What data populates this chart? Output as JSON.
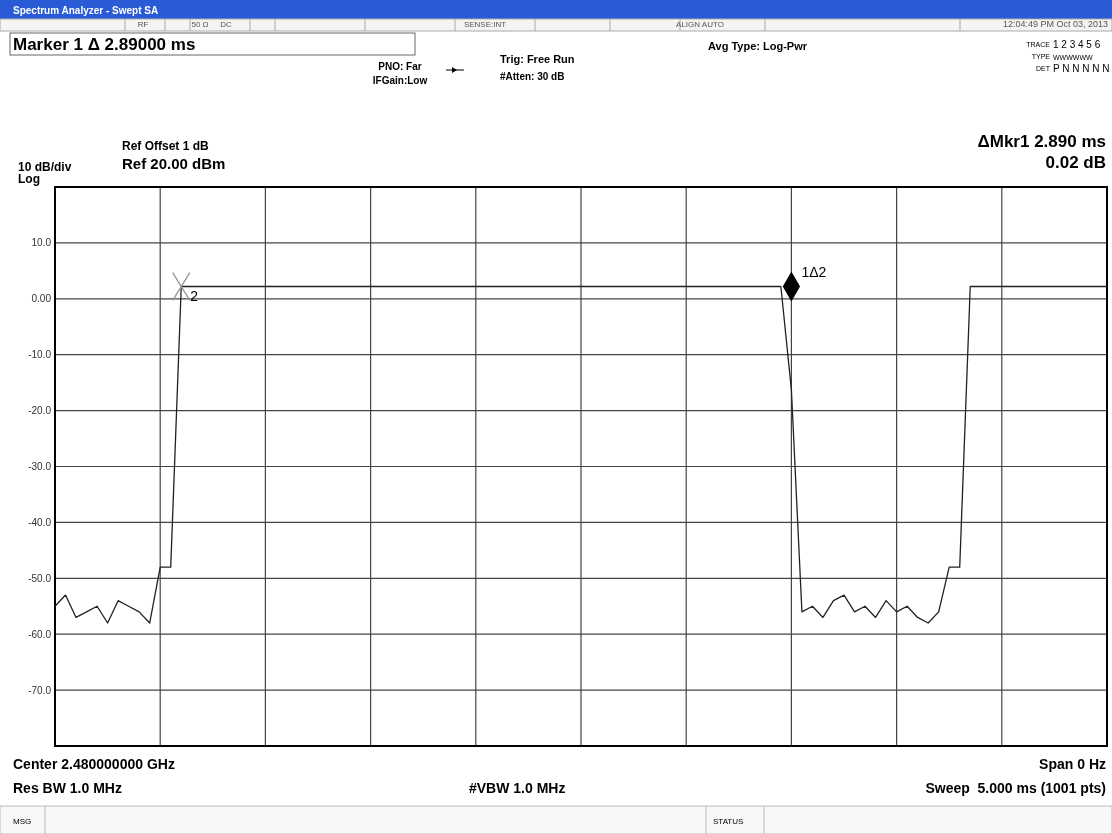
{
  "chart_data": {
    "type": "line",
    "title": "Spectrum Analyzer - Swept SA",
    "categories": [
      null,
      null,
      null,
      null,
      null,
      null,
      null,
      null,
      null,
      null,
      null,
      null,
      null,
      null,
      null,
      null,
      null,
      null,
      null,
      null,
      null,
      null,
      null,
      null,
      null,
      null,
      null,
      null,
      null,
      null,
      null,
      null,
      null,
      null,
      null,
      null,
      null,
      null,
      null,
      null,
      null,
      null,
      null,
      null,
      null,
      null,
      null,
      null,
      null,
      null,
      null,
      null,
      null,
      null,
      null,
      null,
      null,
      null,
      null,
      null,
      null,
      null,
      null,
      null,
      null,
      null,
      null,
      null,
      null,
      null,
      null,
      null,
      null,
      null,
      null,
      null,
      null,
      null,
      null,
      null,
      null,
      null,
      null,
      null,
      null,
      null,
      null,
      null,
      null,
      null,
      null,
      null,
      null,
      null,
      null,
      null,
      null,
      null,
      null,
      null,
      null
    ],
    "series": [
      {
        "color": "#222222",
        "marker": "none",
        "values": [
          -55,
          -53,
          -57,
          -56,
          -55,
          -58,
          -54,
          -55,
          -56,
          -58,
          -48,
          -48,
          2.2,
          2.2,
          2.2,
          2.2,
          2.2,
          2.2,
          2.2,
          2.2,
          2.2,
          2.2,
          2.2,
          2.2,
          2.2,
          2.2,
          2.2,
          2.2,
          2.2,
          2.2,
          2.2,
          2.2,
          2.2,
          2.2,
          2.2,
          2.2,
          2.2,
          2.2,
          2.2,
          2.2,
          2.2,
          2.2,
          2.2,
          2.2,
          2.2,
          2.2,
          2.2,
          2.2,
          2.2,
          2.2,
          2.2,
          2.2,
          2.2,
          2.2,
          2.2,
          2.2,
          2.2,
          2.2,
          2.2,
          2.2,
          2.2,
          2.2,
          2.2,
          2.2,
          2.2,
          2.2,
          2.2,
          2.2,
          2.2,
          2.2,
          -16.3,
          -56,
          -55,
          -57,
          -54,
          -53,
          -56,
          -55,
          -57,
          -54,
          -56,
          -55,
          -57,
          -58,
          -56,
          -48,
          -48,
          2.2,
          2.2,
          2.2,
          2.2,
          2.2,
          2.2,
          2.2,
          2.2,
          2.2,
          2.2,
          2.2,
          2.2,
          2.2,
          2.2
        ]
      },
      {
        "type": "scatter",
        "color": "#999999",
        "marker": "cross",
        "values": [
          null,
          null,
          null,
          null,
          null,
          null,
          null,
          null,
          null,
          null,
          null,
          null,
          2.2,
          null,
          null,
          null,
          null,
          null,
          null,
          null,
          null,
          null,
          null,
          null,
          null,
          null,
          null,
          null,
          null,
          null,
          null,
          null,
          null,
          null,
          null,
          null,
          null,
          null,
          null,
          null,
          null,
          null,
          null,
          null,
          null,
          null,
          null,
          null,
          null,
          null,
          null,
          null,
          null,
          null,
          null,
          null,
          null,
          null,
          null,
          null,
          null,
          null,
          null,
          null,
          null,
          null,
          null,
          null,
          null,
          null,
          null,
          null,
          null,
          null,
          null,
          null,
          null,
          null,
          null,
          null,
          null,
          null,
          null,
          null,
          null,
          null,
          null,
          null,
          null,
          null,
          null,
          null,
          null,
          null,
          null,
          null,
          null,
          null,
          null,
          null,
          null
        ],
        "value_labels": [
          null,
          null,
          null,
          null,
          null,
          null,
          null,
          null,
          null,
          null,
          null,
          null,
          "2",
          null,
          null,
          null,
          null,
          null,
          null,
          null,
          null,
          null,
          null,
          null,
          null,
          null,
          null,
          null,
          null,
          null,
          null,
          null,
          null,
          null,
          null,
          null,
          null,
          null,
          null,
          null,
          null,
          null,
          null,
          null,
          null,
          null,
          null,
          null,
          null,
          null,
          null,
          null,
          null,
          null,
          null,
          null,
          null,
          null,
          null,
          null,
          null,
          null,
          null,
          null,
          null,
          null,
          null,
          null,
          null,
          null,
          null,
          null,
          null,
          null,
          null,
          null,
          null,
          null,
          null,
          null,
          null,
          null,
          null,
          null,
          null,
          null,
          null,
          null,
          null,
          null,
          null,
          null,
          null,
          null,
          null,
          null,
          null,
          null,
          null,
          null,
          null
        ]
      },
      {
        "type": "scatter",
        "color": "#000000",
        "marker": "diamond",
        "values": [
          null,
          null,
          null,
          null,
          null,
          null,
          null,
          null,
          null,
          null,
          null,
          null,
          null,
          null,
          null,
          null,
          null,
          null,
          null,
          null,
          null,
          null,
          null,
          null,
          null,
          null,
          null,
          null,
          null,
          null,
          null,
          null,
          null,
          null,
          null,
          null,
          null,
          null,
          null,
          null,
          null,
          null,
          null,
          null,
          null,
          null,
          null,
          null,
          null,
          null,
          null,
          null,
          null,
          null,
          null,
          null,
          null,
          null,
          null,
          null,
          null,
          null,
          null,
          null,
          null,
          null,
          null,
          null,
          null,
          null,
          2.2,
          null,
          null,
          null,
          null,
          null,
          null,
          null,
          null,
          null,
          null,
          null,
          null,
          null,
          null,
          null,
          null,
          null,
          null,
          null,
          null,
          null,
          null,
          null,
          null,
          null,
          null,
          null,
          null,
          null,
          null
        ],
        "value_labels": [
          null,
          null,
          null,
          null,
          null,
          null,
          null,
          null,
          null,
          null,
          null,
          null,
          null,
          null,
          null,
          null,
          null,
          null,
          null,
          null,
          null,
          null,
          null,
          null,
          null,
          null,
          null,
          null,
          null,
          null,
          null,
          null,
          null,
          null,
          null,
          null,
          null,
          null,
          null,
          null,
          null,
          null,
          null,
          null,
          null,
          null,
          null,
          null,
          null,
          null,
          null,
          null,
          null,
          null,
          null,
          null,
          null,
          null,
          null,
          null,
          null,
          null,
          null,
          null,
          null,
          null,
          null,
          null,
          null,
          null,
          "1Δ2",
          null,
          null,
          null,
          null,
          null,
          null,
          null,
          null,
          null,
          null,
          null,
          null,
          null,
          null,
          null,
          null,
          null,
          null,
          null,
          null,
          null,
          null,
          null,
          null,
          null,
          null,
          null,
          null,
          null,
          null
        ]
      }
    ],
    "ylim": [
      -80,
      20
    ],
    "yticks": [
      {
        "value": 20,
        "label": null
      },
      {
        "value": 10,
        "label": "10.0"
      },
      {
        "value": 0,
        "label": "0.00"
      },
      {
        "value": -10,
        "label": "-10.0"
      },
      {
        "value": -20,
        "label": "-20.0"
      },
      {
        "value": -30,
        "label": "-30.0"
      },
      {
        "value": -40,
        "label": "-40.0"
      },
      {
        "value": -50,
        "label": "-50.0"
      },
      {
        "value": -60,
        "label": "-60.0"
      },
      {
        "value": -70,
        "label": "-70.0"
      },
      {
        "value": -80,
        "label": null
      }
    ],
    "tick_labels": "y",
    "grid": true,
    "annotations": [
      "RF",
      "50 Ω",
      "DC",
      "SENSE:INT",
      "ALIGN AUTO",
      "12:04:49 PM Oct 03, 2013",
      "Marker 1 Δ 2.89000 ms",
      "PNO: Far",
      "IFGain:Low",
      "Trig: Free Run",
      "#Atten: 30 dB",
      "Avg Type: Log-Pwr",
      "TRACE",
      "1 2 3 4 5 6",
      "TYPE",
      "WWWWWW",
      "DET",
      "P N N N N N",
      "Ref Offset 1 dB",
      "Ref 20.00 dBm",
      "10 dB/div",
      "Log",
      "ΔMkr1 2.890 ms",
      "0.02 dB",
      "Center 2.480000000 GHz",
      "Res BW 1.0 MHz",
      "#VBW 1.0 MHz",
      "Span 0 Hz",
      "Sweep  5.000 ms (1001 pts)",
      "MSG",
      "STATUS"
    ]
  }
}
